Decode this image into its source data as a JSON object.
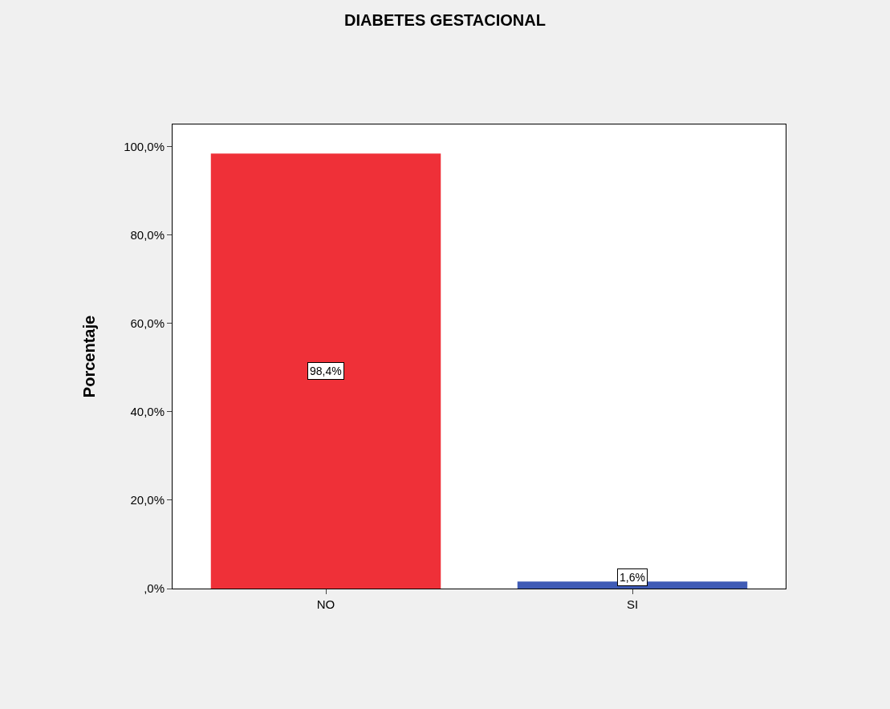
{
  "chart_data": {
    "type": "bar",
    "title": "DIABETES GESTACIONAL",
    "ylabel": "Porcentaje",
    "categories": [
      "NO",
      "SI"
    ],
    "values": [
      98.4,
      1.6
    ],
    "colors": [
      "#ef3038",
      "#3f5bb5"
    ],
    "value_labels": [
      "98,4%",
      "1,6%"
    ],
    "ylim": [
      0,
      105
    ],
    "yticks": [
      {
        "value": 0,
        "label": ",0%"
      },
      {
        "value": 20,
        "label": "20,0%"
      },
      {
        "value": 40,
        "label": "40,0%"
      },
      {
        "value": 60,
        "label": "60,0%"
      },
      {
        "value": 80,
        "label": "80,0%"
      },
      {
        "value": 100,
        "label": "100,0%"
      }
    ],
    "grid": false
  }
}
